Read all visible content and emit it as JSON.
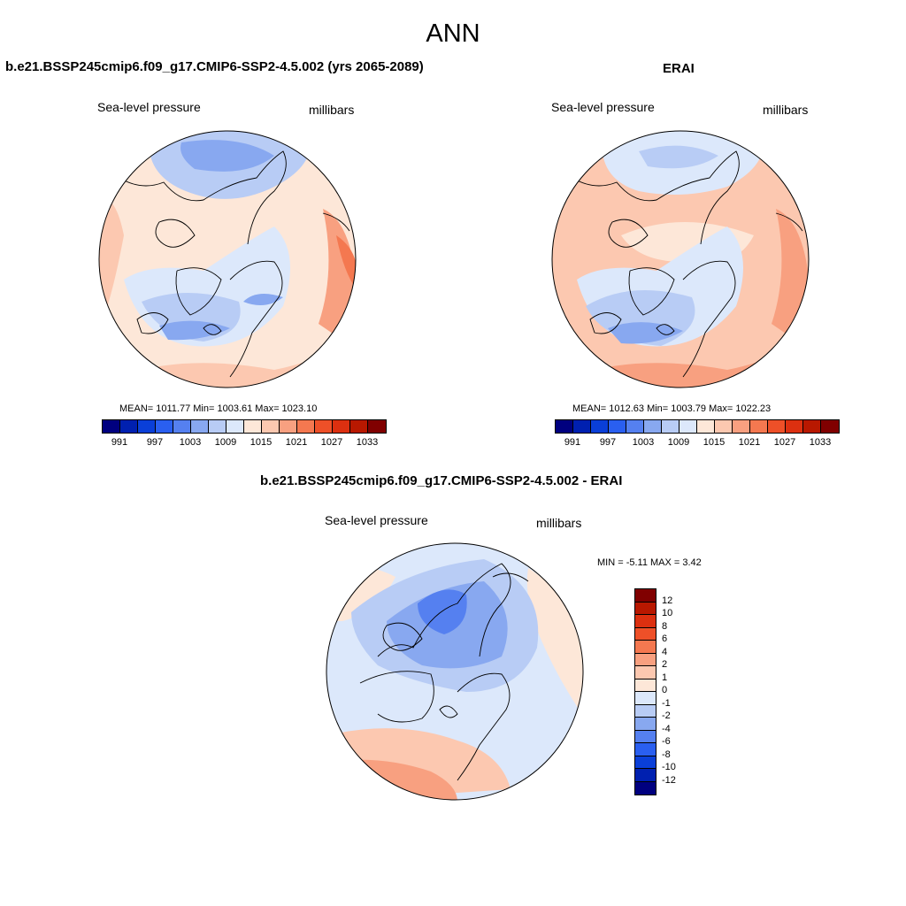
{
  "title": "ANN",
  "panels": {
    "left": {
      "title": "b.e21.BSSP245cmip6.f09_g17.CMIP6-SSP2-4.5.002 (yrs 2065-2089)",
      "variable": "Sea-level pressure",
      "units": "millibars",
      "stats": "MEAN= 1011.77  Min= 1003.61  Max= 1023.10"
    },
    "right": {
      "title": "ERAI",
      "variable": "Sea-level pressure",
      "units": "millibars",
      "stats": "MEAN= 1012.63  Min= 1003.79  Max= 1022.23"
    },
    "diff": {
      "title": "b.e21.BSSP245cmip6.f09_g17.CMIP6-SSP2-4.5.002 - ERAI",
      "variable": "Sea-level pressure",
      "units": "millibars",
      "stats": "MIN =  -5.11 MAX =   3.42"
    }
  },
  "field_colorbar": {
    "colors": [
      "#00007f",
      "#0020b0",
      "#0a3fd8",
      "#2a5ff0",
      "#5580f0",
      "#88a8f0",
      "#b8ccf5",
      "#dce8fb",
      "#fde7d8",
      "#fcc8b0",
      "#f8a080",
      "#f47850",
      "#ee5028",
      "#dc3010",
      "#b81800",
      "#800000"
    ],
    "tick_labels": [
      "991",
      "997",
      "1003",
      "1009",
      "1015",
      "1021",
      "1027",
      "1033"
    ]
  },
  "diff_colorbar": {
    "colors": [
      "#800000",
      "#b81800",
      "#dc3010",
      "#ee5028",
      "#f47850",
      "#f8a080",
      "#fcc8b0",
      "#fde7d8",
      "#dce8fb",
      "#b8ccf5",
      "#88a8f0",
      "#5580f0",
      "#2a5ff0",
      "#0a3fd8",
      "#0020b0",
      "#00007f"
    ],
    "tick_labels": [
      "12",
      "10",
      "8",
      "6",
      "4",
      "2",
      "1",
      "0",
      "-1",
      "-2",
      "-4",
      "-6",
      "-8",
      "-10",
      "-12"
    ]
  },
  "map_colors": {
    "light_blue": "#dce8fb",
    "mid_blue": "#b8ccf5",
    "blue": "#88a8f0",
    "strong_blue": "#5580f0",
    "light_orange": "#fde7d8",
    "orange": "#fcc8b0",
    "strong_orange": "#f8a080",
    "deep_orange": "#f47850"
  }
}
